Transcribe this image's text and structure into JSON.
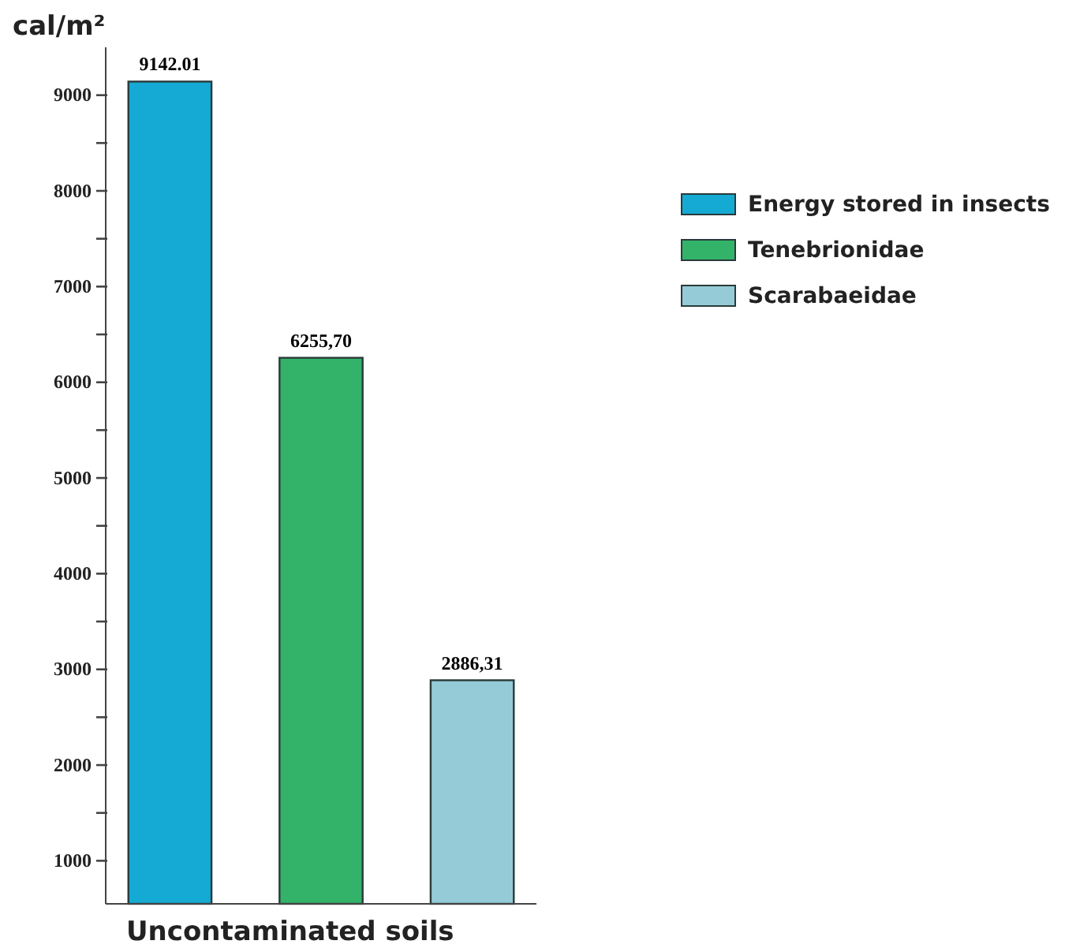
{
  "chart_data": {
    "type": "bar",
    "ylabel": "cal/m²",
    "xlabel": "Uncontaminated soils",
    "categories": [
      null,
      null,
      null
    ],
    "series": [
      {
        "name": "Energy stored in insects",
        "color": "#14aad3",
        "values": [
          9142.01,
          null,
          null
        ],
        "value_labels": [
          "9142.01",
          null,
          null
        ]
      },
      {
        "name": "Tenebrionidae",
        "color": "#33b36a",
        "values": [
          null,
          6255.7,
          null
        ],
        "value_labels": [
          null,
          "6255,70",
          null
        ]
      },
      {
        "name": "Scarabaeidae",
        "color": "#95cbd6",
        "values": [
          null,
          null,
          2886.31
        ],
        "value_labels": [
          null,
          null,
          "2886,31"
        ]
      }
    ],
    "ylim": [
      550,
      9500
    ],
    "yticks": [
      1000,
      {
        "value": 1500,
        "label": null
      },
      2000,
      {
        "value": 2500,
        "label": null
      },
      3000,
      {
        "value": 3500,
        "label": null
      },
      4000,
      {
        "value": 4500,
        "label": null
      },
      5000,
      {
        "value": 5500,
        "label": null
      },
      6000,
      {
        "value": 6500,
        "label": null
      },
      7000,
      {
        "value": 7500,
        "label": null
      },
      8000,
      {
        "value": 8500,
        "label": null
      },
      9000
    ],
    "grid": false,
    "legend": "top right"
  }
}
